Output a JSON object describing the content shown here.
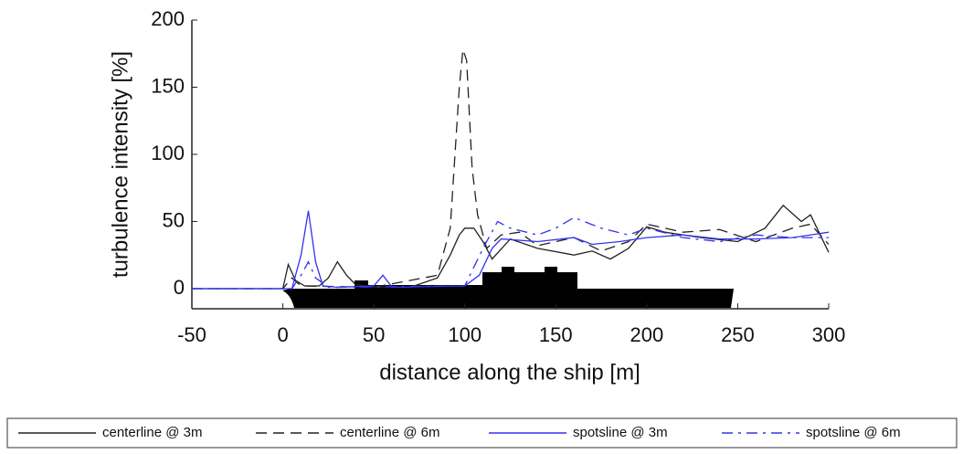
{
  "chart_data": {
    "type": "line",
    "xlabel": "distance along the ship [m]",
    "ylabel": "turbulence intensity [%]",
    "xlim": [
      -50,
      300
    ],
    "xticks": [
      -50,
      0,
      50,
      100,
      150,
      200,
      250,
      300
    ],
    "ylim": [
      -15,
      200
    ],
    "yticks": [
      0,
      50,
      100,
      150,
      200
    ],
    "series": [
      {
        "name": "centerline @ 3m",
        "color": "#222222",
        "dash": "solid",
        "x": [
          -50,
          0,
          3,
          7,
          12,
          20,
          25,
          30,
          35,
          40,
          50,
          70,
          85,
          92,
          97,
          100,
          105,
          110,
          115,
          125,
          140,
          160,
          170,
          180,
          190,
          200,
          210,
          230,
          250,
          265,
          275,
          285,
          290,
          300
        ],
        "values": [
          0,
          0,
          18,
          6,
          2,
          2,
          8,
          20,
          10,
          3,
          1,
          1,
          8,
          25,
          40,
          45,
          45,
          35,
          22,
          37,
          30,
          25,
          28,
          22,
          30,
          46,
          42,
          38,
          35,
          45,
          62,
          50,
          55,
          27
        ]
      },
      {
        "name": "centerline @ 6m",
        "color": "#222222",
        "dash": "dashed",
        "x": [
          -50,
          0,
          5,
          10,
          50,
          85,
          92,
          97,
          99,
          101,
          104,
          107,
          112,
          120,
          130,
          140,
          160,
          175,
          190,
          200,
          220,
          240,
          260,
          280,
          290,
          300
        ],
        "values": [
          0,
          0,
          8,
          2,
          1,
          10,
          45,
          150,
          178,
          170,
          90,
          55,
          30,
          40,
          42,
          32,
          38,
          28,
          35,
          48,
          42,
          44,
          35,
          45,
          48,
          33
        ]
      },
      {
        "name": "spotsline @ 3m",
        "color": "#3333ee",
        "dash": "solid",
        "x": [
          -50,
          5,
          10,
          14,
          18,
          22,
          30,
          50,
          55,
          60,
          100,
          108,
          115,
          120,
          140,
          160,
          170,
          185,
          200,
          220,
          240,
          260,
          280,
          300
        ],
        "values": [
          0,
          0,
          25,
          58,
          20,
          2,
          1,
          2,
          10,
          1,
          2,
          10,
          30,
          37,
          35,
          38,
          33,
          35,
          38,
          40,
          37,
          37,
          38,
          42
        ]
      },
      {
        "name": "spotsline @ 6m",
        "color": "#3333ee",
        "dash": "dashdot",
        "x": [
          -50,
          5,
          10,
          14,
          18,
          25,
          100,
          110,
          118,
          125,
          140,
          150,
          160,
          175,
          190,
          200,
          220,
          240,
          260,
          280,
          300
        ],
        "values": [
          0,
          0,
          10,
          20,
          8,
          1,
          2,
          30,
          50,
          45,
          40,
          45,
          53,
          45,
          40,
          45,
          38,
          35,
          40,
          38,
          38
        ]
      }
    ]
  }
}
